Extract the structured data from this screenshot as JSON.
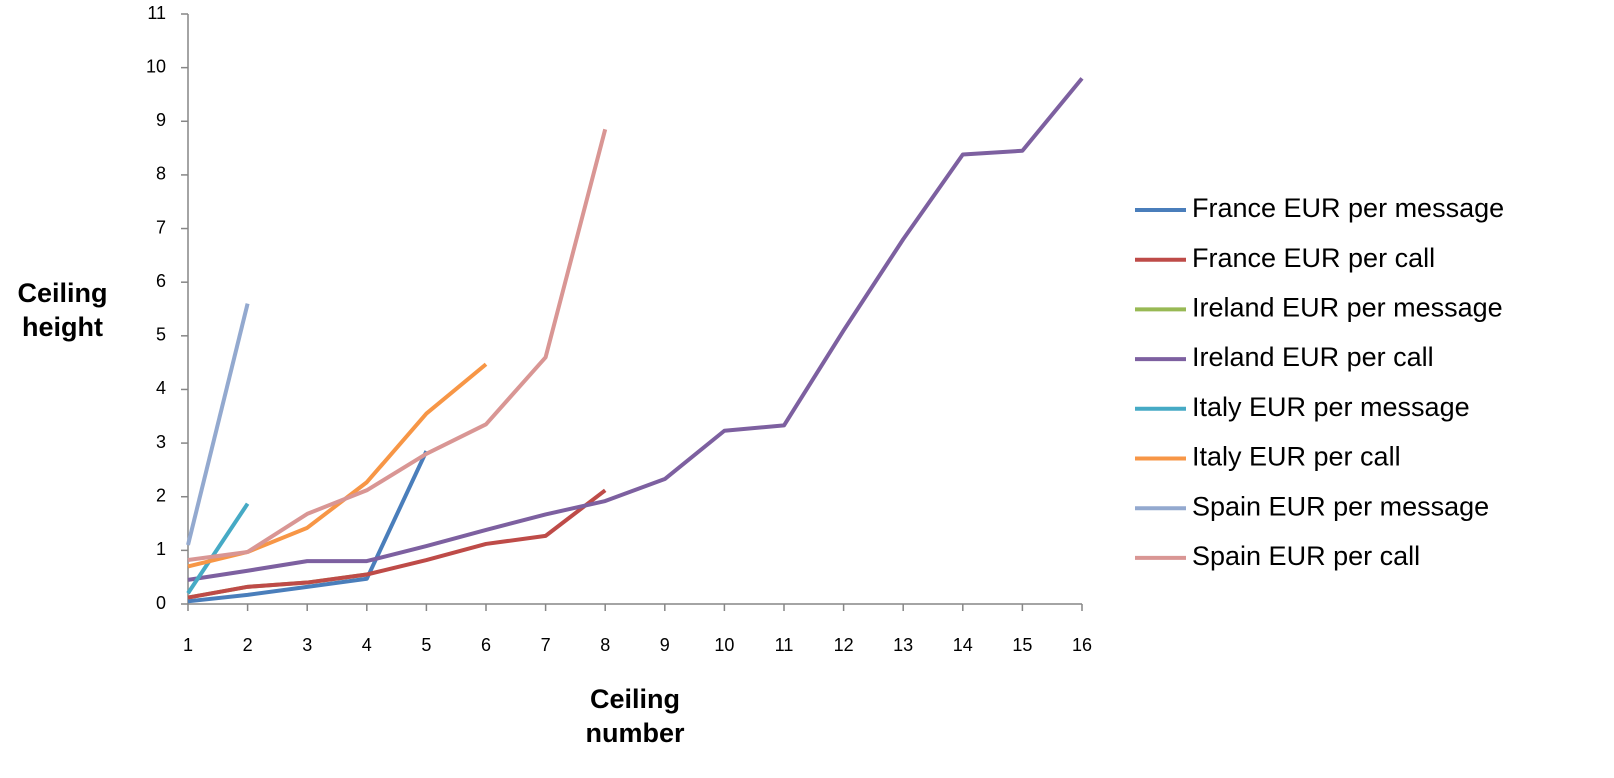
{
  "chart_data": {
    "type": "line",
    "x_label": "Ceiling number",
    "y_label": "Ceiling height",
    "x": [
      1,
      2,
      3,
      4,
      5,
      6,
      7,
      8,
      9,
      10,
      11,
      12,
      13,
      14,
      15,
      16
    ],
    "xlim": [
      1,
      16
    ],
    "xticks": [
      1,
      2,
      3,
      4,
      5,
      6,
      7,
      8,
      9,
      10,
      11,
      12,
      13,
      14,
      15,
      16
    ],
    "ylim": [
      0,
      11
    ],
    "yticks": [
      0,
      1,
      2,
      3,
      4,
      5,
      6,
      7,
      8,
      9,
      10,
      11
    ],
    "grid": false,
    "legend": "right",
    "series": [
      {
        "name": "Ireland EUR per message",
        "color": "#98b954",
        "values": [
          0.12,
          0.32,
          0.4,
          0.55,
          null,
          null,
          null,
          null,
          null,
          null,
          null,
          null,
          null,
          null,
          null,
          null
        ]
      },
      {
        "name": "France EUR per message",
        "color": "#4a7ebb",
        "values": [
          0.05,
          0.17,
          0.32,
          0.47,
          2.85,
          null,
          null,
          null,
          null,
          null,
          null,
          null,
          null,
          null,
          null,
          null
        ]
      },
      {
        "name": "France EUR per call",
        "color": "#be4b48",
        "values": [
          0.12,
          0.32,
          0.4,
          0.55,
          0.82,
          1.12,
          1.27,
          2.12,
          null,
          null,
          null,
          null,
          null,
          null,
          null,
          null
        ]
      },
      {
        "name": "Ireland EUR per call",
        "color": "#7d60a0",
        "values": [
          0.45,
          0.62,
          0.8,
          0.8,
          1.08,
          1.38,
          1.67,
          1.92,
          2.33,
          3.23,
          3.33,
          5.1,
          6.8,
          8.38,
          8.45,
          9.8
        ]
      },
      {
        "name": "Italy EUR per message",
        "color": "#46aac5",
        "values": [
          0.2,
          1.87,
          null,
          null,
          null,
          null,
          null,
          null,
          null,
          null,
          null,
          null,
          null,
          null,
          null,
          null
        ]
      },
      {
        "name": "Italy EUR per call",
        "color": "#f79646",
        "values": [
          0.7,
          0.97,
          1.42,
          2.27,
          3.55,
          4.47,
          null,
          null,
          null,
          null,
          null,
          null,
          null,
          null,
          null,
          null
        ]
      },
      {
        "name": "Spain EUR per message",
        "color": "#93a9cf",
        "values": [
          1.1,
          5.6,
          null,
          null,
          null,
          null,
          null,
          null,
          null,
          null,
          null,
          null,
          null,
          null,
          null,
          null
        ]
      },
      {
        "name": "Spain EUR per call",
        "color": "#d99694",
        "values": [
          0.82,
          0.97,
          1.68,
          2.12,
          2.8,
          3.35,
          4.6,
          8.85,
          null,
          null,
          null,
          null,
          null,
          null,
          null,
          null
        ]
      }
    ],
    "legend_order": [
      1,
      2,
      0,
      3,
      4,
      5,
      6,
      7
    ]
  }
}
